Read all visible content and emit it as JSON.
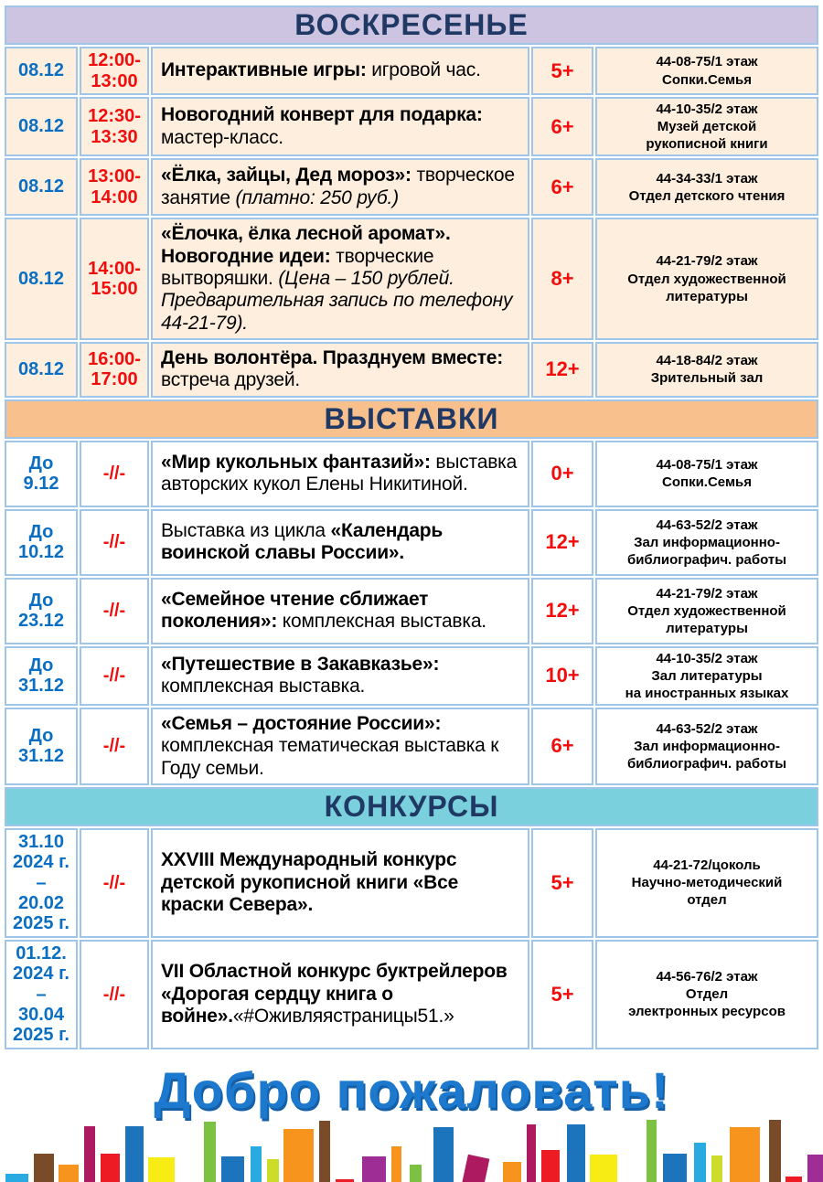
{
  "colors": {
    "border": "#9fc5e8",
    "navy": "#1f3864",
    "date_blue": "#0a6fc2",
    "red": "#f20d0d",
    "welcome_blue": "#1d79cd",
    "welcome_shadow": "#1460a8",
    "sunday_header_bg": "#cdc4e2",
    "sunday_row_bg": "#fdeedd",
    "exhibitions_header_bg": "#f8c08c",
    "contests_header_bg": "#7bd0dd",
    "plain_row_bg": "#ffffff"
  },
  "welcome": "Добро пожаловать!",
  "sections": [
    {
      "title": "ВОСКРЕСЕНЬЕ",
      "header_bg": "#cdc4e2",
      "row_bg": "#fdeedd",
      "rows": [
        {
          "date": [
            "08.12"
          ],
          "time": [
            "12:00-",
            "13:00"
          ],
          "desc": [
            {
              "t": "Интерактивные игры:",
              "s": "b"
            },
            {
              "t": " игровой час.",
              "s": "r"
            }
          ],
          "age": "5+",
          "loc": [
            "44-08-75/1 этаж",
            "Сопки.Семья"
          ]
        },
        {
          "date": [
            "08.12"
          ],
          "time": [
            "12:30-",
            "13:30"
          ],
          "desc": [
            {
              "t": "Новогодний конверт для подарка:",
              "s": "b"
            },
            {
              "t": " мастер-класс.",
              "s": "r"
            }
          ],
          "age": "6+",
          "loc": [
            "44-10-35/2 этаж",
            "Музей детской",
            "рукописной книги"
          ]
        },
        {
          "date": [
            "08.12"
          ],
          "time": [
            "13:00-",
            "14:00"
          ],
          "desc": [
            {
              "t": "«Ёлка, зайцы, Дед мороз»:",
              "s": "b"
            },
            {
              "t": " творческое занятие ",
              "s": "r"
            },
            {
              "t": "(платно: 250 руб.)",
              "s": "i"
            }
          ],
          "age": "6+",
          "loc": [
            "44-34-33/1 этаж",
            "Отдел детского чтения"
          ]
        },
        {
          "date": [
            "08.12"
          ],
          "time": [
            "14:00-",
            "15:00"
          ],
          "desc": [
            {
              "t": "«Ёлочка, ёлка лесной аромат». Новогодние идеи:",
              "s": "b"
            },
            {
              "t": " творческие вытворяшки. ",
              "s": "r"
            },
            {
              "t": "(Цена – 150 рублей. Предварительная запись по телефону 44-21-79).",
              "s": "i"
            }
          ],
          "age": "8+",
          "loc": [
            "44-21-79/2 этаж",
            "Отдел художественной",
            "литературы"
          ]
        },
        {
          "date": [
            "08.12"
          ],
          "time": [
            "16:00-",
            "17:00"
          ],
          "desc": [
            {
              "t": "День волонтёра. Празднуем вместе:",
              "s": "b"
            },
            {
              "t": " встреча друзей.",
              "s": "r"
            }
          ],
          "age": "12+",
          "loc": [
            "44-18-84/2 этаж",
            "Зрительный зал"
          ]
        }
      ]
    },
    {
      "title": "ВЫСТАВКИ",
      "header_bg": "#f8c08c",
      "row_bg": "#ffffff",
      "rows": [
        {
          "date": [
            "До",
            "9.12"
          ],
          "time": [
            "-//-"
          ],
          "desc": [
            {
              "t": "«Мир кукольных фантазий»:",
              "s": "b"
            },
            {
              "t": " выставка авторских кукол Елены Никитиной.",
              "s": "r"
            }
          ],
          "age": "0+",
          "loc": [
            "44-08-75/1 этаж",
            "Сопки.Семья"
          ]
        },
        {
          "date": [
            "До",
            "10.12"
          ],
          "time": [
            "-//-"
          ],
          "desc": [
            {
              "t": "Выставка из цикла ",
              "s": "r"
            },
            {
              "t": "«Календарь воинской славы России».",
              "s": "b"
            }
          ],
          "age": "12+",
          "loc": [
            "44-63-52/2 этаж",
            "Зал информационно-",
            "библиографич. работы"
          ]
        },
        {
          "date": [
            "До",
            "23.12"
          ],
          "time": [
            "-//-"
          ],
          "desc": [
            {
              "t": "«Семейное чтение сближает поколения»:",
              "s": "b"
            },
            {
              "t": " комплексная выставка.",
              "s": "r"
            }
          ],
          "age": "12+",
          "loc": [
            "44-21-79/2 этаж",
            "Отдел художественной",
            "литературы"
          ]
        },
        {
          "date": [
            "До",
            "31.12"
          ],
          "time": [
            "-//-"
          ],
          "desc": [
            {
              "t": "«Путешествие в Закавказье»:",
              "s": "b"
            },
            {
              "t": " комплексная выставка.",
              "s": "r"
            }
          ],
          "age": "10+",
          "loc": [
            "44-10-35/2 этаж",
            "Зал литературы",
            "на иностранных языках"
          ]
        },
        {
          "date": [
            "До",
            "31.12"
          ],
          "time": [
            "-//-"
          ],
          "desc": [
            {
              "t": "«Семья – достояние России»:",
              "s": "b"
            },
            {
              "t": " комплексная тематическая выставка к Году семьи.",
              "s": "r"
            }
          ],
          "age": "6+",
          "loc": [
            "44-63-52/2 этаж",
            "Зал информационно-",
            "библиографич. работы"
          ]
        }
      ]
    },
    {
      "title": "КОНКУРСЫ",
      "header_bg": "#7bd0dd",
      "row_bg": "#ffffff",
      "rows": [
        {
          "date": [
            "31.10",
            "2024 г. –",
            "20.02",
            "2025 г."
          ],
          "time": [
            "-//-"
          ],
          "desc": [
            {
              "t": "XXVIII Международный конкурс детской рукописной книги «Все краски Севера».",
              "s": "b"
            }
          ],
          "age": "5+",
          "loc": [
            "44-21-72/цоколь",
            "Научно-методический",
            "отдел"
          ]
        },
        {
          "date": [
            "01.12.",
            "2024 г. –",
            "30.04",
            "2025 г."
          ],
          "time": [
            "-//-"
          ],
          "desc": [
            {
              "t": "VII Областной конкурс буктрейлеров «Дорогая сердцу книга о войне».",
              "s": "b"
            },
            {
              "t": "«#Оживляястраницы51.»",
              "s": "r"
            }
          ],
          "age": "5+",
          "loc": [
            "44-56-76/2 этаж",
            "Отдел",
            "электронных ресурсов"
          ]
        }
      ]
    }
  ],
  "bookshelf": {
    "spines": [
      {
        "c": "#29abe2",
        "w": 25,
        "h": 36,
        "ml": 3
      },
      {
        "c": "#7a4b28",
        "w": 22,
        "h": 58,
        "ml": 6
      },
      {
        "c": "#f7941e",
        "w": 22,
        "h": 46,
        "ml": 5
      },
      {
        "c": "#ad1a5f",
        "w": 12,
        "h": 88,
        "ml": 6
      },
      {
        "c": "#ed1c24",
        "w": 21,
        "h": 58,
        "ml": 6
      },
      {
        "c": "#1c75bc",
        "w": 20,
        "h": 88,
        "ml": 6
      },
      {
        "c": "#f7ec13",
        "w": 29,
        "h": 54,
        "ml": 5
      },
      {
        "c": "#009444",
        "w": 20,
        "h": 20,
        "ml": 7
      },
      {
        "c": "#7cc142",
        "w": 13,
        "h": 93,
        "ml": 5
      },
      {
        "c": "#1c75bc",
        "w": 25,
        "h": 55,
        "ml": 6
      },
      {
        "c": "#29abe2",
        "w": 12,
        "h": 66,
        "ml": 7
      },
      {
        "c": "#cddc29",
        "w": 13,
        "h": 52,
        "ml": 6
      },
      {
        "c": "#f7941e",
        "w": 33,
        "h": 85,
        "ml": 5
      },
      {
        "c": "#7a4b28",
        "w": 12,
        "h": 94,
        "ml": 6
      },
      {
        "c": "#ed1c24",
        "w": 20,
        "h": 30,
        "ml": 6
      },
      {
        "c": "#9f2d96",
        "w": 26,
        "h": 55,
        "ml": 9
      },
      {
        "c": "#f7941e",
        "w": 11,
        "h": 66,
        "ml": 6
      },
      {
        "c": "#7cc142",
        "w": 13,
        "h": 46,
        "ml": 9
      },
      {
        "c": "#1c75bc",
        "w": 22,
        "h": 87,
        "ml": 13
      },
      {
        "c": "#ad1a5f",
        "w": 24,
        "h": 56,
        "ml": 4,
        "tilt": 12
      },
      {
        "c": "#f7941e",
        "w": 20,
        "h": 49,
        "ml": 26
      },
      {
        "c": "#ad1a5f",
        "w": 10,
        "h": 90,
        "ml": 6
      },
      {
        "c": "#ed1c24",
        "w": 20,
        "h": 62,
        "ml": 6
      },
      {
        "c": "#1c75bc",
        "w": 20,
        "h": 90,
        "ml": 8
      },
      {
        "c": "#f7ec13",
        "w": 30,
        "h": 57,
        "ml": 5
      },
      {
        "c": "#009444",
        "w": 20,
        "h": 19,
        "ml": 6
      },
      {
        "c": "#7cc142",
        "w": 11,
        "h": 95,
        "ml": 6
      },
      {
        "c": "#1c75bc",
        "w": 26,
        "h": 58,
        "ml": 7
      },
      {
        "c": "#29abe2",
        "w": 13,
        "h": 70,
        "ml": 8
      },
      {
        "c": "#cddc29",
        "w": 12,
        "h": 56,
        "ml": 6
      },
      {
        "c": "#f7941e",
        "w": 33,
        "h": 87,
        "ml": 8
      },
      {
        "c": "#7a4b28",
        "w": 13,
        "h": 95,
        "ml": 10
      },
      {
        "c": "#ed1c24",
        "w": 18,
        "h": 33,
        "ml": 5
      },
      {
        "c": "#9f2d96",
        "w": 20,
        "h": 57,
        "ml": 6
      }
    ]
  }
}
